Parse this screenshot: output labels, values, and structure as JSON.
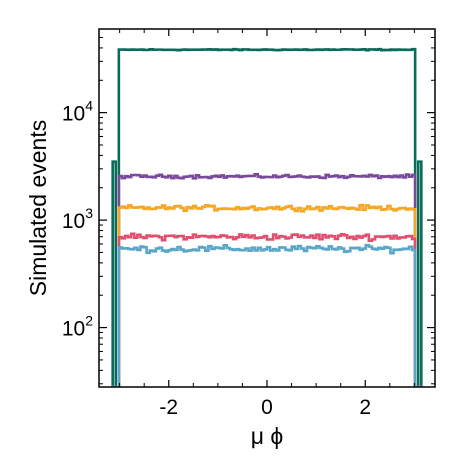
{
  "chart_data": {
    "type": "line",
    "style": "step-histogram",
    "xlabel": "μ ϕ",
    "ylabel": "Simulated events",
    "xlim": [
      -3.42,
      3.42
    ],
    "ylim": [
      28,
      60000
    ],
    "yscale": "log",
    "x_ticks": [
      -2,
      0,
      2
    ],
    "x_tick_labels": [
      "-2",
      "0",
      "2"
    ],
    "y_ticks": [
      100,
      1000,
      10000
    ],
    "y_tick_labels": [
      {
        "base": "10",
        "exp": "2"
      },
      {
        "base": "10",
        "exp": "3"
      },
      {
        "base": "10",
        "exp": "4"
      }
    ],
    "grid": false,
    "legend": "none",
    "x_range": [
      -3.1416,
      3.1416
    ],
    "edge_bins": 2,
    "series": [
      {
        "color": "#0b6b5a",
        "level": 38500,
        "edge_values": [
          3500,
          0
        ],
        "noise_pct": 1.0
      },
      {
        "color": "#7a4a9a",
        "level": 2550,
        "edge_values": [
          28,
          0
        ],
        "noise_pct": 3.0
      },
      {
        "color": "#f5a623",
        "level": 1300,
        "edge_values": [
          28,
          0
        ],
        "noise_pct": 4.5
      },
      {
        "color": "#e0506e",
        "level": 700,
        "edge_values": [
          28,
          0
        ],
        "noise_pct": 5.5
      },
      {
        "color": "#5aa6c8",
        "level": 540,
        "edge_values": [
          28,
          0
        ],
        "noise_pct": 6.0
      }
    ]
  }
}
